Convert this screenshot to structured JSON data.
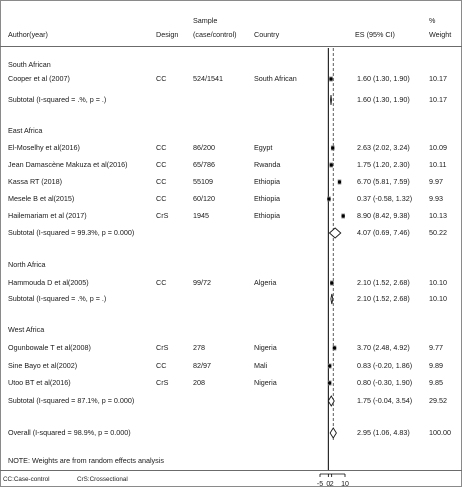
{
  "header": {
    "author": "Author(year)",
    "design": "Design",
    "sample_top": "Sample",
    "sample_bottom": "(case/control)",
    "country": "Country",
    "es": "ES (95% CI)",
    "weight_top": "%",
    "weight_bottom": "Weight"
  },
  "rows": [
    {
      "type": "group",
      "label": "South African"
    },
    {
      "type": "study",
      "author": "Cooper et al (2007)",
      "design": "CC",
      "sample": "524/1541",
      "country": "South African",
      "es_text": "1.60 (1.30, 1.90)",
      "weight": "10.17"
    },
    {
      "type": "subtotal",
      "author": "Subtotal  (I-squared = .%, p = .)",
      "es_text": "1.60 (1.30, 1.90)",
      "weight": "10.17"
    },
    {
      "type": "group",
      "label": "East Africa"
    },
    {
      "type": "study",
      "author": "El-Moselhy et al(2016)",
      "design": "CC",
      "sample": "86/200",
      "country": "Egypt",
      "es_text": "2.63 (2.02, 3.24)",
      "weight": "10.09"
    },
    {
      "type": "study",
      "author": "Jean Damascène Makuza et al(2016)",
      "design": "CC",
      "sample": "65/786",
      "country": "Rwanda",
      "es_text": "1.75 (1.20, 2.30)",
      "weight": "10.11"
    },
    {
      "type": "study",
      "author": "Kassa RT (2018)",
      "design": "CC",
      "sample": "55109",
      "country": "Ethiopia",
      "es_text": "6.70 (5.81, 7.59)",
      "weight": "9.97"
    },
    {
      "type": "study",
      "author": "Mesele B et al(2015)",
      "design": "CC",
      "sample": "60/120",
      "country": "Ethiopia",
      "es_text": "0.37 (-0.58, 1.32)",
      "weight": "9.93"
    },
    {
      "type": "study",
      "author": "Hailemariam et al (2017)",
      "design": "CrS",
      "sample": "1945",
      "country": "Ethiopia",
      "es_text": "8.90 (8.42, 9.38)",
      "weight": "10.13"
    },
    {
      "type": "subtotal",
      "author": "Subtotal  (I-squared = 99.3%, p = 0.000)",
      "es_text": "4.07 (0.69, 7.46)",
      "weight": "50.22"
    },
    {
      "type": "group",
      "label": "North Africa"
    },
    {
      "type": "study",
      "author": "Hammouda D et al(2005)",
      "design": "CC",
      "sample": "99/72",
      "country": "Algeria",
      "es_text": "2.10 (1.52, 2.68)",
      "weight": "10.10"
    },
    {
      "type": "subtotal",
      "author": "Subtotal  (I-squared = .%, p = .)",
      "es_text": "2.10 (1.52, 2.68)",
      "weight": "10.10"
    },
    {
      "type": "group",
      "label": "West Africa"
    },
    {
      "type": "study",
      "author": "Ogunbowale T et al(2008)",
      "design": "CrS",
      "sample": "278",
      "country": "Nigeria",
      "es_text": "3.70 (2.48, 4.92)",
      "weight": "9.77"
    },
    {
      "type": "study",
      "author": "Sine Bayo et al(2002)",
      "design": "CC",
      "sample": "82/97",
      "country": "Mali",
      "es_text": "0.83 (-0.20, 1.86)",
      "weight": "9.89"
    },
    {
      "type": "study",
      "author": "Utoo BT et al(2016)",
      "design": "CrS",
      "sample": "208",
      "country": "Nigeria",
      "es_text": "0.80 (-0.30, 1.90)",
      "weight": "9.85"
    },
    {
      "type": "subtotal",
      "author": "Subtotal  (I-squared = 87.1%, p = 0.000)",
      "es_text": "1.75 (-0.04, 3.54)",
      "weight": "29.52"
    },
    {
      "type": "overall",
      "author": "Overall  (I-squared = 98.9%, p = 0.000)",
      "es_text": "2.95 (1.06, 4.83)",
      "weight": "100.00"
    },
    {
      "type": "note",
      "author": "NOTE: Weights are from random effects analysis"
    }
  ],
  "legend": {
    "cc": "CC:Case-control",
    "crs": "CrS:Crossectional"
  },
  "chart_data": {
    "type": "forest",
    "x_ticks": [
      -5,
      0,
      2,
      10
    ],
    "x_tick_labels": [
      "-5",
      "0",
      "2",
      "10"
    ],
    "xlim": [
      -5,
      10
    ],
    "null_line": 0,
    "overall_line": 2.95,
    "series": [
      {
        "label": "Cooper et al (2007)",
        "es": 1.6,
        "lo": 1.3,
        "hi": 1.9,
        "kind": "study"
      },
      {
        "label": "Subtotal South African",
        "es": 1.6,
        "lo": 1.3,
        "hi": 1.9,
        "kind": "subtotal"
      },
      {
        "label": "El-Moselhy et al(2016)",
        "es": 2.63,
        "lo": 2.02,
        "hi": 3.24,
        "kind": "study"
      },
      {
        "label": "Jean Damascène Makuza et al(2016)",
        "es": 1.75,
        "lo": 1.2,
        "hi": 2.3,
        "kind": "study"
      },
      {
        "label": "Kassa RT (2018)",
        "es": 6.7,
        "lo": 5.81,
        "hi": 7.59,
        "kind": "study"
      },
      {
        "label": "Mesele B et al(2015)",
        "es": 0.37,
        "lo": -0.58,
        "hi": 1.32,
        "kind": "study"
      },
      {
        "label": "Hailemariam et al (2017)",
        "es": 8.9,
        "lo": 8.42,
        "hi": 9.38,
        "kind": "study"
      },
      {
        "label": "Subtotal East Africa",
        "es": 4.07,
        "lo": 0.69,
        "hi": 7.46,
        "kind": "subtotal"
      },
      {
        "label": "Hammouda D et al(2005)",
        "es": 2.1,
        "lo": 1.52,
        "hi": 2.68,
        "kind": "study"
      },
      {
        "label": "Subtotal North Africa",
        "es": 2.1,
        "lo": 1.52,
        "hi": 2.68,
        "kind": "subtotal"
      },
      {
        "label": "Ogunbowale T et al(2008)",
        "es": 3.7,
        "lo": 2.48,
        "hi": 4.92,
        "kind": "study"
      },
      {
        "label": "Sine Bayo et al(2002)",
        "es": 0.83,
        "lo": -0.2,
        "hi": 1.86,
        "kind": "study"
      },
      {
        "label": "Utoo BT et al(2016)",
        "es": 0.8,
        "lo": -0.3,
        "hi": 1.9,
        "kind": "study"
      },
      {
        "label": "Subtotal West Africa",
        "es": 1.75,
        "lo": -0.04,
        "hi": 3.54,
        "kind": "subtotal"
      },
      {
        "label": "Overall",
        "es": 2.95,
        "lo": 1.06,
        "hi": 4.83,
        "kind": "overall"
      }
    ]
  }
}
